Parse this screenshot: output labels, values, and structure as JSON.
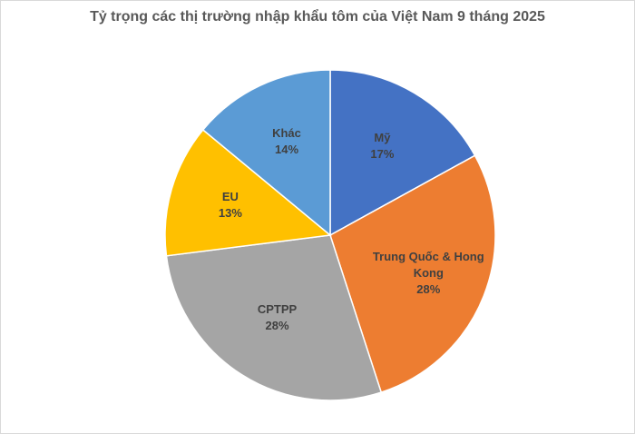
{
  "chart_data": {
    "type": "pie",
    "title": "Tỷ trọng các thị trường nhập khẩu tôm của Việt Nam 9 tháng 2025",
    "slices": [
      {
        "name": "Mỹ",
        "name_lines": [
          "Mỹ"
        ],
        "value": 17,
        "value_label": "17%",
        "color": "#4472C4"
      },
      {
        "name": "Trung Quốc & Hong Kong",
        "name_lines": [
          "Trung Quốc & Hong",
          "Kong"
        ],
        "value": 28,
        "value_label": "28%",
        "color": "#ED7D31"
      },
      {
        "name": "CPTPP",
        "name_lines": [
          "CPTPP"
        ],
        "value": 28,
        "value_label": "28%",
        "color": "#A5A5A5"
      },
      {
        "name": "EU",
        "name_lines": [
          "EU"
        ],
        "value": 13,
        "value_label": "13%",
        "color": "#FFC000"
      },
      {
        "name": "Khác",
        "name_lines": [
          "Khác"
        ],
        "value": 14,
        "value_label": "14%",
        "color": "#5B9BD5"
      }
    ],
    "legend": "none",
    "start_angle_deg": 0,
    "direction": "clockwise"
  }
}
